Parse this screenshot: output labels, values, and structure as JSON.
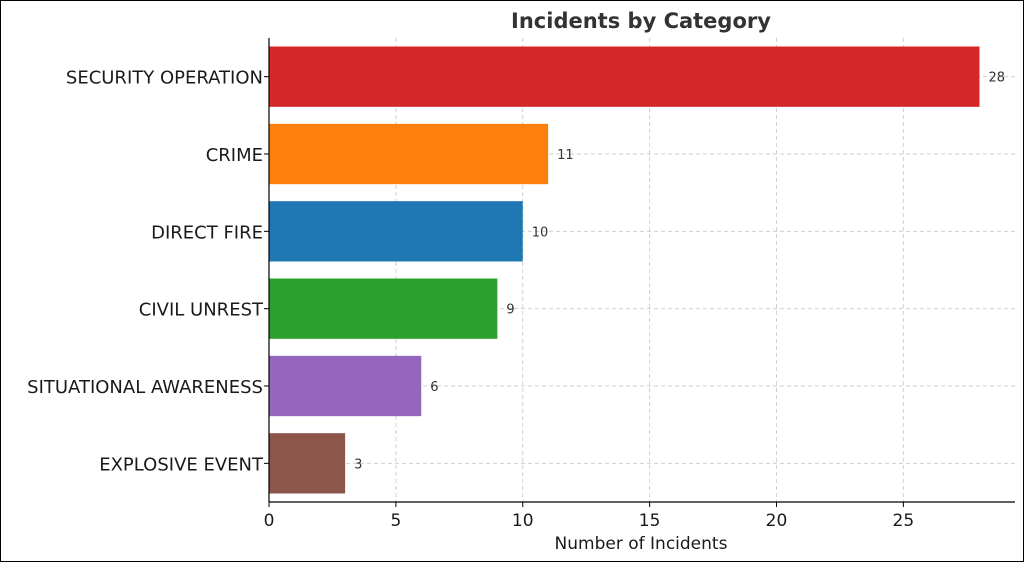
{
  "chart_data": {
    "type": "bar",
    "orientation": "horizontal",
    "title": "Incidents by Category",
    "xlabel": "Number of Incidents",
    "ylabel": "",
    "categories": [
      "SECURITY OPERATION",
      "CRIME",
      "DIRECT FIRE",
      "CIVIL UNREST",
      "SITUATIONAL AWARENESS",
      "EXPLOSIVE EVENT"
    ],
    "values": [
      28,
      11,
      10,
      9,
      6,
      3
    ],
    "colors": [
      "#d62728",
      "#ff7f0e",
      "#1f77b4",
      "#2ca02c",
      "#9467bd",
      "#8c564b"
    ],
    "xlim": [
      0,
      29.4
    ],
    "xticks": [
      0,
      5,
      10,
      15,
      20,
      25
    ],
    "grid": true,
    "data_labels": true
  }
}
